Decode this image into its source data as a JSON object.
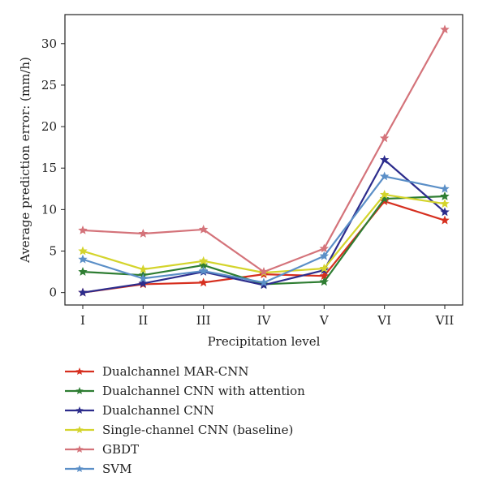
{
  "chart_data": {
    "type": "line",
    "title": "",
    "xlabel": "Precipitation level",
    "ylabel": "Average prediction error: (mm/h)",
    "categories": [
      "I",
      "II",
      "III",
      "IV",
      "V",
      "VI",
      "VII"
    ],
    "ylim": [
      -1.5,
      33.5
    ],
    "yticks": [
      0,
      5,
      10,
      15,
      20,
      25,
      30
    ],
    "grid": false,
    "legend_position": "bottom",
    "marker": "star",
    "series": [
      {
        "name": "Dualchannel MAR-CNN",
        "color": "#d62f1f",
        "values": [
          0.0,
          1.0,
          1.2,
          2.2,
          2.0,
          11.0,
          8.7
        ]
      },
      {
        "name": "Dualchannel CNN with attention",
        "color": "#2e7d32",
        "values": [
          2.5,
          2.1,
          3.3,
          1.0,
          1.3,
          11.3,
          11.6
        ]
      },
      {
        "name": "Dualchannel CNN",
        "color": "#2c2c8c",
        "values": [
          0.0,
          1.1,
          2.5,
          0.9,
          2.7,
          16.0,
          9.7
        ]
      },
      {
        "name": "Single-channel CNN (baseline)",
        "color": "#d4d42c",
        "values": [
          5.0,
          2.8,
          3.8,
          2.4,
          2.9,
          11.8,
          10.7
        ]
      },
      {
        "name": "GBDT",
        "color": "#d4737a",
        "values": [
          7.5,
          7.1,
          7.6,
          2.5,
          5.3,
          18.6,
          31.7
        ]
      },
      {
        "name": "SVM",
        "color": "#5b8fc7",
        "values": [
          4.0,
          1.7,
          2.6,
          1.2,
          4.4,
          14.0,
          12.5
        ]
      }
    ]
  }
}
